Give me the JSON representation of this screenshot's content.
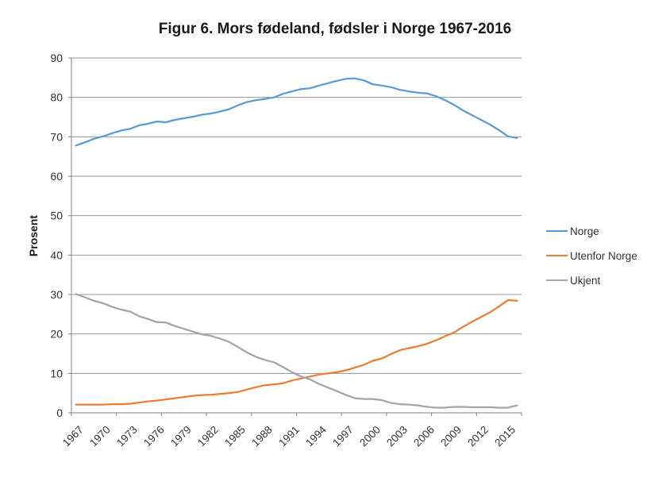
{
  "title": "Figur 6. Mors fødeland, fødsler i Norge 1967-2016",
  "chart_data": {
    "type": "line",
    "title": "Figur 6. Mors fødeland, fødsler i Norge 1967-2016",
    "xlabel": "",
    "ylabel": "Prosent",
    "ylim": [
      0,
      90
    ],
    "yticks": [
      0,
      10,
      20,
      30,
      40,
      50,
      60,
      70,
      80,
      90
    ],
    "grid": "horizontal",
    "legend_position": "right",
    "xtick_labels": [
      "1967",
      "1970",
      "1973",
      "1976",
      "1979",
      "1982",
      "1985",
      "1988",
      "1991",
      "1994",
      "1997",
      "2000",
      "2003",
      "2006",
      "2009",
      "2012",
      "2015"
    ],
    "x": [
      1967,
      1968,
      1969,
      1970,
      1971,
      1972,
      1973,
      1974,
      1975,
      1976,
      1977,
      1978,
      1979,
      1980,
      1981,
      1982,
      1983,
      1984,
      1985,
      1986,
      1987,
      1988,
      1989,
      1990,
      1991,
      1992,
      1993,
      1994,
      1995,
      1996,
      1997,
      1998,
      1999,
      2000,
      2001,
      2002,
      2003,
      2004,
      2005,
      2006,
      2007,
      2008,
      2009,
      2010,
      2011,
      2012,
      2013,
      2014,
      2015,
      2016
    ],
    "series": [
      {
        "name": "Norge",
        "color": "#5B9BD5",
        "values": [
          67.8,
          68.6,
          69.5,
          70.1,
          70.9,
          71.6,
          72.0,
          72.9,
          73.3,
          73.9,
          73.7,
          74.3,
          74.7,
          75.1,
          75.6,
          75.9,
          76.4,
          77.0,
          78.0,
          78.8,
          79.3,
          79.6,
          80.0,
          80.9,
          81.5,
          82.1,
          82.3,
          83.0,
          83.6,
          84.2,
          84.7,
          84.8,
          84.3,
          83.3,
          83.0,
          82.6,
          81.9,
          81.5,
          81.2,
          81.0,
          80.3,
          79.3,
          78.1,
          76.7,
          75.5,
          74.3,
          73.1,
          71.7,
          70.1,
          69.7
        ]
      },
      {
        "name": "Utenfor Norge",
        "color": "#ED7D31",
        "values": [
          2.1,
          2.1,
          2.1,
          2.1,
          2.2,
          2.2,
          2.3,
          2.6,
          2.9,
          3.1,
          3.4,
          3.7,
          4.0,
          4.3,
          4.5,
          4.6,
          4.8,
          5.0,
          5.3,
          5.9,
          6.5,
          7.0,
          7.2,
          7.5,
          8.2,
          8.7,
          9.2,
          9.7,
          10.0,
          10.3,
          10.8,
          11.5,
          12.2,
          13.2,
          13.8,
          14.9,
          15.9,
          16.4,
          16.9,
          17.5,
          18.4,
          19.4,
          20.4,
          21.8,
          23.1,
          24.3,
          25.5,
          27.0,
          28.6,
          28.4
        ]
      },
      {
        "name": "Ukjent",
        "color": "#A5A5A5",
        "values": [
          30.1,
          29.3,
          28.4,
          27.8,
          26.9,
          26.2,
          25.7,
          24.5,
          23.8,
          23.0,
          22.9,
          22.0,
          21.3,
          20.6,
          19.9,
          19.5,
          18.8,
          18.0,
          16.7,
          15.3,
          14.2,
          13.4,
          12.8,
          11.6,
          10.3,
          9.2,
          8.5,
          7.3,
          6.4,
          5.5,
          4.5,
          3.7,
          3.5,
          3.5,
          3.2,
          2.5,
          2.2,
          2.1,
          1.9,
          1.5,
          1.3,
          1.3,
          1.5,
          1.5,
          1.4,
          1.4,
          1.4,
          1.3,
          1.3,
          1.9
        ]
      }
    ],
    "colors": {
      "gridline": "#969696",
      "axis": "#808080",
      "tick_label": "#333333"
    }
  }
}
